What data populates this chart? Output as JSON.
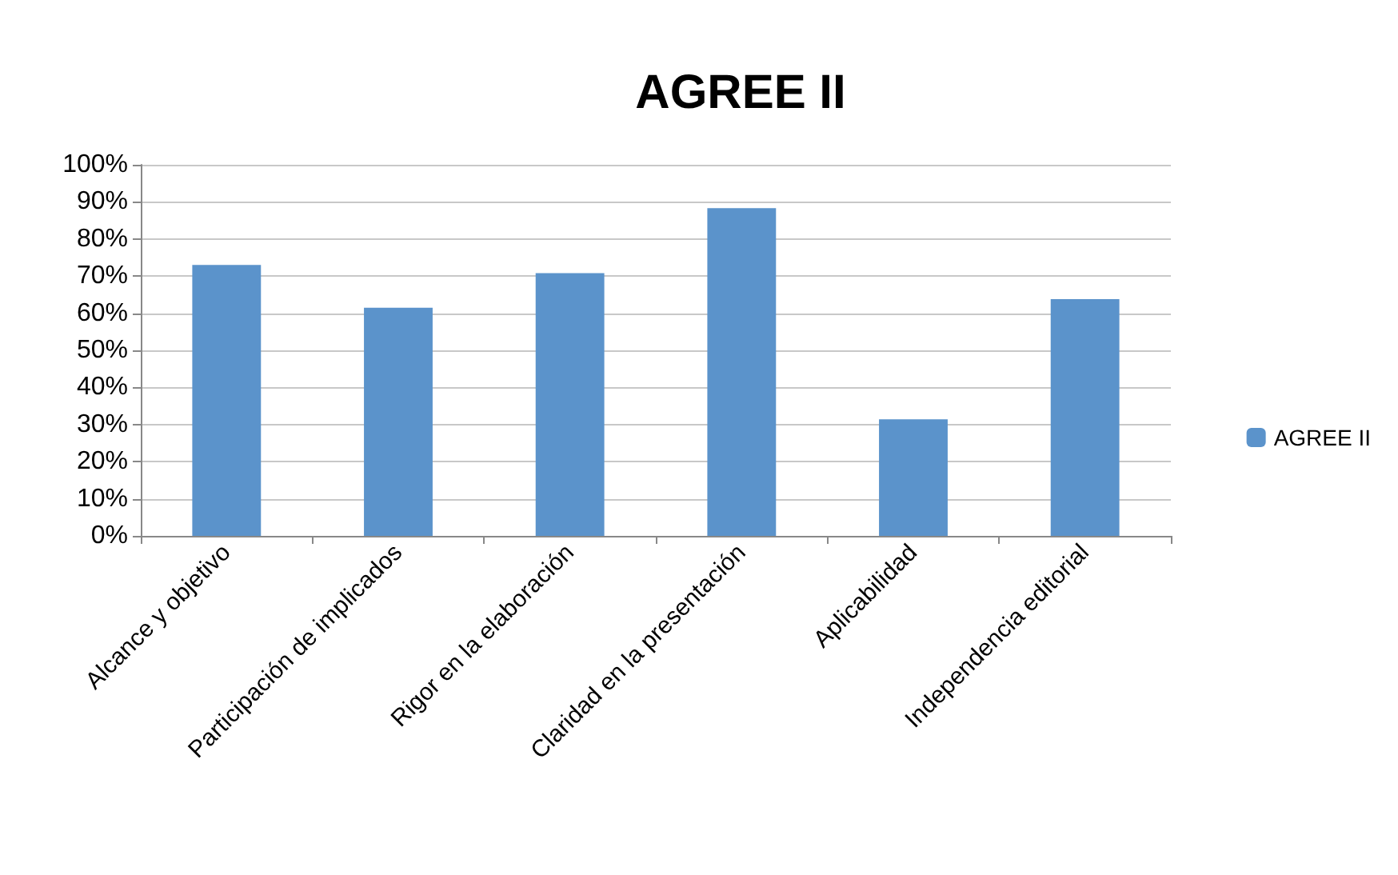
{
  "chart_data": {
    "type": "bar",
    "title": "AGREE II",
    "categories": [
      "Alcance y objetivo",
      "Participación de implicados",
      "Rigor en la elaboración",
      "Claridad en la presentación",
      "Aplicabilidad",
      "Independencia editorial"
    ],
    "series": [
      {
        "name": "AGREE II",
        "color": "#5b93cb",
        "values": [
          73,
          61.5,
          70.8,
          88.3,
          31.4,
          63.8
        ]
      }
    ],
    "ylim": [
      0,
      100
    ],
    "yticks": [
      {
        "value": 0,
        "label": "0%"
      },
      {
        "value": 10,
        "label": "10%"
      },
      {
        "value": 20,
        "label": "20%"
      },
      {
        "value": 30,
        "label": "30%"
      },
      {
        "value": 40,
        "label": "40%"
      },
      {
        "value": 50,
        "label": "50%"
      },
      {
        "value": 60,
        "label": "60%"
      },
      {
        "value": 70,
        "label": "70%"
      },
      {
        "value": 80,
        "label": "80%"
      },
      {
        "value": 90,
        "label": "90%"
      },
      {
        "value": 100,
        "label": "100%"
      }
    ],
    "grid": "y",
    "legend": "right"
  }
}
